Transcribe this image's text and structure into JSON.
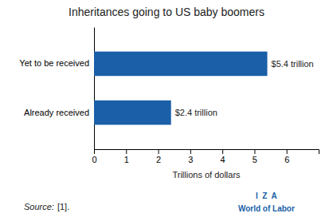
{
  "chart_data": {
    "type": "bar",
    "orientation": "horizontal",
    "title": "Inheritances going to US baby boomers",
    "categories": [
      "Already received",
      "Yet to be received"
    ],
    "values": [
      2.4,
      5.4
    ],
    "value_labels": [
      "$2.4 trillion",
      "$5.4 trillion"
    ],
    "data_labels": true,
    "color": "#1a5fa8",
    "xlabel": "Trillions of dollars",
    "xlim": [
      0,
      7
    ],
    "xticks": [
      0,
      1,
      2,
      3,
      4,
      5,
      6
    ],
    "grid": false,
    "annotations": [
      "Source:",
      "[1].",
      "I  Z  A",
      "World of Labor"
    ]
  }
}
